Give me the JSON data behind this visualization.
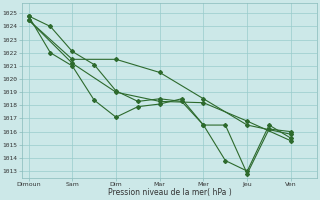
{
  "background_color": "#cce8e8",
  "grid_color": "#99cccc",
  "line_color": "#2d6a2d",
  "xlabel": "Pression niveau de la mer( hPa )",
  "ylim": [
    1012.5,
    1025.8
  ],
  "yticks": [
    1013,
    1014,
    1015,
    1016,
    1017,
    1018,
    1019,
    1020,
    1021,
    1022,
    1023,
    1024,
    1025
  ],
  "day_labels": [
    "Dimoun",
    "Sam",
    "Dim",
    "Mar",
    "Mer",
    "Jeu",
    "Ven"
  ],
  "day_x": [
    0,
    2,
    4,
    6,
    8,
    10,
    12
  ],
  "xlim": [
    -0.3,
    13.2
  ],
  "lines": [
    {
      "x": [
        0,
        1,
        2,
        3,
        4,
        5,
        6,
        7,
        8,
        9,
        10,
        11,
        12
      ],
      "y": [
        1024.8,
        1022.0,
        1021.0,
        1018.4,
        1017.1,
        1017.9,
        1018.1,
        1018.5,
        1016.5,
        1013.8,
        1013.0,
        1016.5,
        1015.5
      ]
    },
    {
      "x": [
        0,
        1,
        2,
        3,
        4,
        5,
        6,
        7,
        8,
        9,
        10,
        11,
        12
      ],
      "y": [
        1024.8,
        1024.0,
        1022.1,
        1021.1,
        1019.1,
        1018.3,
        1018.5,
        1018.3,
        1016.5,
        1016.5,
        1012.8,
        1016.2,
        1016.0
      ]
    },
    {
      "x": [
        0,
        2,
        4,
        6,
        8,
        10,
        12
      ],
      "y": [
        1024.5,
        1021.5,
        1021.5,
        1020.5,
        1018.5,
        1016.5,
        1015.8
      ]
    },
    {
      "x": [
        0,
        2,
        4,
        6,
        8,
        10,
        12
      ],
      "y": [
        1024.5,
        1021.2,
        1019.0,
        1018.3,
        1018.2,
        1016.8,
        1015.3
      ]
    }
  ]
}
